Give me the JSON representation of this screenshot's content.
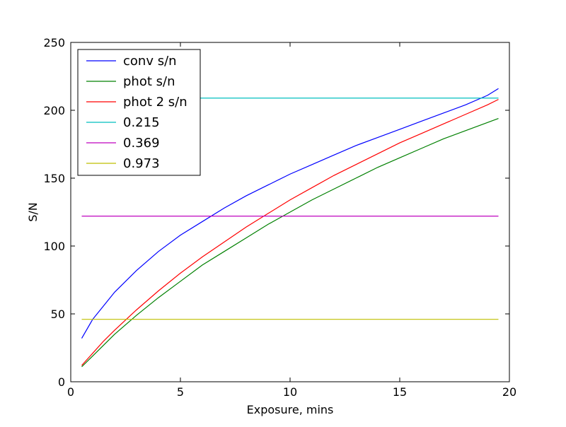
{
  "chart_data": {
    "type": "line",
    "title": "",
    "xlabel": "Exposure, mins",
    "ylabel": "S/N",
    "xlim": [
      0,
      20
    ],
    "ylim": [
      0,
      250
    ],
    "xticks": [
      0,
      5,
      10,
      15,
      20
    ],
    "yticks": [
      0,
      50,
      100,
      150,
      200,
      250
    ],
    "xtick_labels": [
      "0",
      "5",
      "10",
      "15",
      "20"
    ],
    "ytick_labels": [
      "0",
      "50",
      "100",
      "150",
      "200",
      "250"
    ],
    "grid": false,
    "legend_position": "top-left",
    "x": [
      0.5,
      1,
      1.5,
      2,
      3,
      4,
      5,
      6,
      7,
      8,
      9,
      10,
      11,
      12,
      13,
      14,
      15,
      16,
      17,
      18,
      19,
      19.5
    ],
    "series": [
      {
        "name": "conv s/n",
        "color": "#0000ff",
        "values": [
          32,
          46,
          56,
          66,
          82,
          96,
          108,
          118,
          128,
          137,
          145,
          153,
          160,
          167,
          174,
          180,
          186,
          192,
          198,
          204,
          211,
          216
        ]
      },
      {
        "name": "phot s/n",
        "color": "#008000",
        "values": [
          11,
          19,
          27,
          35,
          49,
          62,
          74,
          86,
          96,
          106,
          116,
          125,
          134,
          142,
          150,
          158,
          165,
          172,
          179,
          185,
          191,
          194
        ]
      },
      {
        "name": "phot 2 s/n",
        "color": "#ff0000",
        "values": [
          12,
          21,
          30,
          38,
          53,
          67,
          80,
          92,
          103,
          114,
          124,
          134,
          143,
          152,
          160,
          168,
          176,
          183,
          190,
          197,
          204,
          208
        ]
      },
      {
        "name": "0.215",
        "color": "#00bfbf",
        "x": [
          0.5,
          19.5
        ],
        "values": [
          209,
          209
        ]
      },
      {
        "name": "0.369",
        "color": "#bf00bf",
        "x": [
          0.5,
          19.5
        ],
        "values": [
          122,
          122
        ]
      },
      {
        "name": "0.973",
        "color": "#bfbf00",
        "x": [
          0.5,
          19.5
        ],
        "values": [
          46,
          46
        ]
      }
    ]
  }
}
